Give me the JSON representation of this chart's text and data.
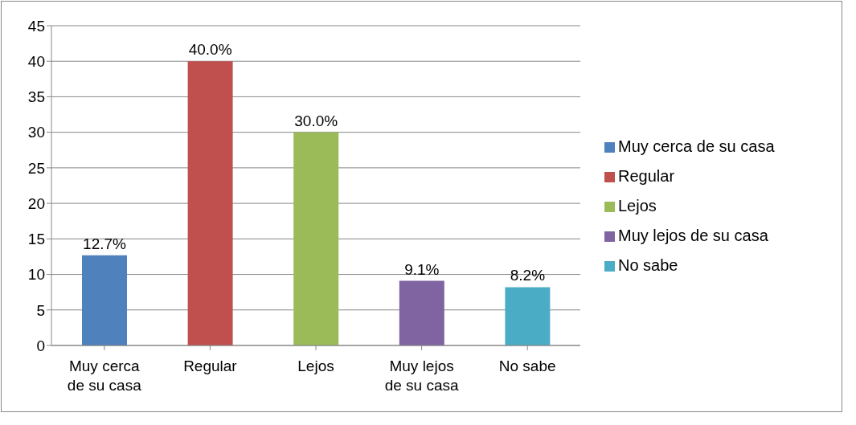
{
  "chart_data": {
    "type": "bar",
    "categories": [
      "Muy cerca de su casa",
      "Regular",
      "Lejos",
      "Muy lejos de su casa",
      "No sabe"
    ],
    "series": [
      {
        "name": "Muy cerca de su casa",
        "color": "#4f81bd",
        "values": [
          12.7,
          null,
          null,
          null,
          null
        ],
        "value_labels": [
          "12.7%",
          null,
          null,
          null,
          null
        ]
      },
      {
        "name": "Regular",
        "color": "#c0504d",
        "values": [
          null,
          40,
          null,
          null,
          null
        ],
        "value_labels": [
          null,
          "40.0%",
          null,
          null,
          null
        ]
      },
      {
        "name": "Lejos",
        "color": "#9bbb59",
        "values": [
          null,
          null,
          30,
          null,
          null
        ],
        "value_labels": [
          null,
          null,
          "30.0%",
          null,
          null
        ]
      },
      {
        "name": "Muy lejos de su casa",
        "color": "#8064a2",
        "values": [
          null,
          null,
          null,
          9.1,
          null
        ],
        "value_labels": [
          null,
          null,
          null,
          "9.1%",
          null
        ]
      },
      {
        "name": "No sabe",
        "color": "#4bacc6",
        "values": [
          null,
          null,
          null,
          null,
          8.2
        ],
        "value_labels": [
          null,
          null,
          null,
          null,
          "8.2%"
        ]
      }
    ],
    "stacked": true,
    "ylim": [
      0,
      45
    ],
    "yticks": [
      0,
      5,
      10,
      15,
      20,
      25,
      30,
      35,
      40,
      45
    ],
    "grid": "y",
    "legend": "right"
  }
}
